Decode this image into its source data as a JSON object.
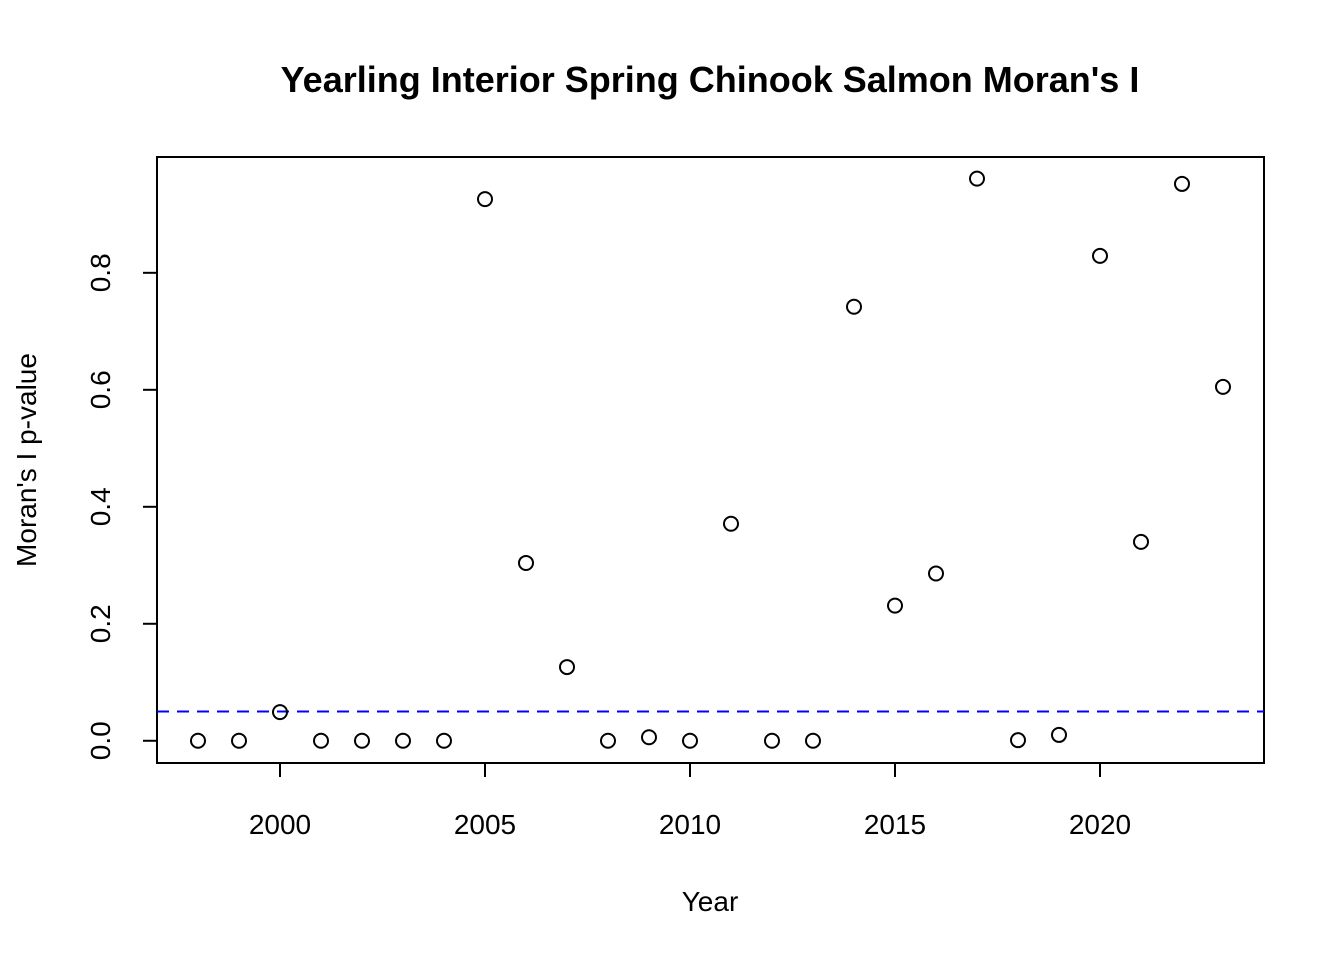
{
  "chart_data": {
    "type": "scatter",
    "title": "Yearling Interior Spring Chinook Salmon Moran's I",
    "xlabel": "Year",
    "ylabel": "Moran's I p-value",
    "xlim": [
      1997,
      2024
    ],
    "ylim": [
      -0.038,
      0.998
    ],
    "x_ticks": [
      2000,
      2005,
      2010,
      2015,
      2020
    ],
    "y_ticks": [
      0.0,
      0.2,
      0.4,
      0.6,
      0.8
    ],
    "y_tick_labels": [
      "0.0",
      "0.2",
      "0.4",
      "0.6",
      "0.8"
    ],
    "x": [
      1998,
      1999,
      2000,
      2001,
      2002,
      2003,
      2004,
      2005,
      2006,
      2007,
      2008,
      2009,
      2010,
      2011,
      2012,
      2013,
      2014,
      2015,
      2016,
      2017,
      2018,
      2019,
      2020,
      2021,
      2022,
      2023
    ],
    "y": [
      0.0,
      0.0,
      0.049,
      0.0,
      0.0,
      0.0,
      0.0,
      0.926,
      0.304,
      0.126,
      0.0,
      0.006,
      0.0,
      0.371,
      0.0,
      0.0,
      0.742,
      0.231,
      0.286,
      0.961,
      0.001,
      0.01,
      0.829,
      0.34,
      0.952,
      0.605
    ],
    "reference_line": {
      "y": 0.05,
      "style": "dashed",
      "color": "#0000ff"
    },
    "point_style": "open-circle",
    "grid": false,
    "legend": "none"
  }
}
